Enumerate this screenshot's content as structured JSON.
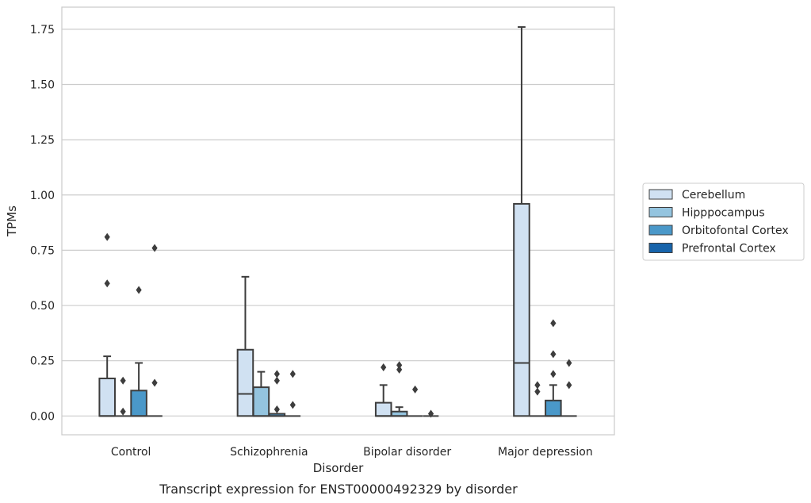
{
  "chart_data": {
    "type": "box",
    "xlabel": "Disorder",
    "ylabel": "TPMs",
    "caption": "Transcript expression for ENST00000492329 by disorder",
    "ylim": [
      -0.085,
      1.85
    ],
    "yticks": [
      0.0,
      0.25,
      0.5,
      0.75,
      1.0,
      1.25,
      1.5,
      1.75
    ],
    "ytick_labels": [
      "0.00",
      "0.25",
      "0.50",
      "0.75",
      "1.00",
      "1.25",
      "1.50",
      "1.75"
    ],
    "grid": "horizontal",
    "legend_position": "right",
    "categories": [
      "Control",
      "Schizophrenia",
      "Bipolar disorder",
      "Major depression"
    ],
    "series": [
      {
        "name": "Cerebellum",
        "color": "#d0e1f2",
        "boxes": [
          {
            "q1": 0,
            "median": 0,
            "q3": 0.17,
            "whisker_low": 0,
            "whisker_high": 0.27,
            "outliers": [
              0.6,
              0.81
            ]
          },
          {
            "q1": 0,
            "median": 0.1,
            "q3": 0.3,
            "whisker_low": 0,
            "whisker_high": 0.63,
            "outliers": []
          },
          {
            "q1": 0,
            "median": 0,
            "q3": 0.06,
            "whisker_low": 0,
            "whisker_high": 0.14,
            "outliers": [
              0.22
            ]
          },
          {
            "q1": 0,
            "median": 0.24,
            "q3": 0.96,
            "whisker_low": 0,
            "whisker_high": 1.76,
            "outliers": []
          }
        ]
      },
      {
        "name": "Hipppocampus",
        "color": "#94c4df",
        "boxes": [
          {
            "q1": 0,
            "median": 0,
            "q3": 0,
            "whisker_low": 0,
            "whisker_high": 0,
            "outliers": [
              0.02,
              0.16
            ]
          },
          {
            "q1": 0,
            "median": 0,
            "q3": 0.13,
            "whisker_low": 0,
            "whisker_high": 0.2,
            "outliers": []
          },
          {
            "q1": 0,
            "median": 0,
            "q3": 0.02,
            "whisker_low": 0,
            "whisker_high": 0.04,
            "outliers": [
              0.21,
              0.23
            ]
          },
          {
            "q1": 0,
            "median": 0,
            "q3": 0,
            "whisker_low": 0,
            "whisker_high": 0,
            "outliers": [
              0.11,
              0.14
            ]
          }
        ]
      },
      {
        "name": "Orbitofontal Cortex",
        "color": "#4a98c9",
        "boxes": [
          {
            "q1": 0,
            "median": 0,
            "q3": 0.115,
            "whisker_low": 0,
            "whisker_high": 0.24,
            "outliers": [
              0.57
            ]
          },
          {
            "q1": 0,
            "median": 0,
            "q3": 0.01,
            "whisker_low": 0,
            "whisker_high": 0.01,
            "outliers": [
              0.03,
              0.16,
              0.19
            ]
          },
          {
            "q1": 0,
            "median": 0,
            "q3": 0,
            "whisker_low": 0,
            "whisker_high": 0,
            "outliers": [
              0.12
            ]
          },
          {
            "q1": 0,
            "median": 0,
            "q3": 0.07,
            "whisker_low": 0,
            "whisker_high": 0.14,
            "outliers": [
              0.19,
              0.28,
              0.42
            ]
          }
        ]
      },
      {
        "name": "Prefrontal Cortex",
        "color": "#1764ab",
        "boxes": [
          {
            "q1": 0,
            "median": 0,
            "q3": 0,
            "whisker_low": 0,
            "whisker_high": 0,
            "outliers": [
              0.15,
              0.76
            ]
          },
          {
            "q1": 0,
            "median": 0,
            "q3": 0,
            "whisker_low": 0,
            "whisker_high": 0,
            "outliers": [
              0.05,
              0.19
            ]
          },
          {
            "q1": 0,
            "median": 0,
            "q3": 0,
            "whisker_low": 0,
            "whisker_high": 0,
            "outliers": [
              0.01
            ]
          },
          {
            "q1": 0,
            "median": 0,
            "q3": 0,
            "whisker_low": 0,
            "whisker_high": 0,
            "outliers": [
              0.14,
              0.24
            ]
          }
        ]
      }
    ]
  }
}
